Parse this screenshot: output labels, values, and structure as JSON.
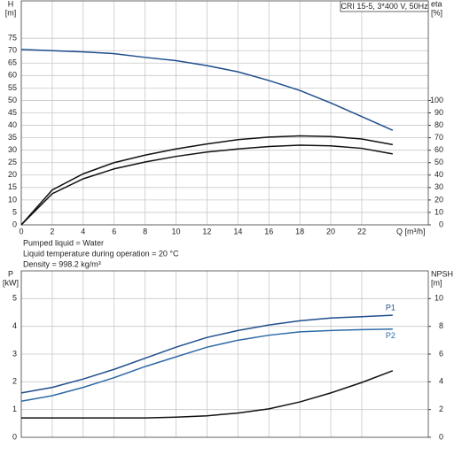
{
  "chart_data": [
    {
      "type": "line",
      "title": "CRI 15-5, 3*400 V, 50Hz",
      "ylabel": [
        "H",
        "[m]"
      ],
      "y2label": [
        "eta",
        "[%]"
      ],
      "xlabel": "Q [m³/h]",
      "x": [
        0,
        2,
        4,
        6,
        8,
        10,
        12,
        14,
        16,
        18,
        20,
        22,
        24
      ],
      "xlim": [
        0,
        26.3
      ],
      "xticks": [
        0,
        2,
        4,
        6,
        8,
        10,
        12,
        14,
        16,
        18,
        20,
        22
      ],
      "ylim": [
        0,
        90
      ],
      "yticks": [
        0,
        5,
        10,
        15,
        20,
        25,
        30,
        35,
        40,
        45,
        50,
        55,
        60,
        65,
        70,
        75
      ],
      "y2lim": [
        0,
        180
      ],
      "y2ticks": [
        0,
        10,
        20,
        30,
        40,
        50,
        60,
        70,
        80,
        90,
        100
      ],
      "grid": true,
      "series": [
        {
          "color": "#1f4e8c",
          "values": [
            70.5,
            70,
            69.5,
            68.8,
            67.3,
            66,
            64,
            61.5,
            58,
            54,
            49,
            43.5,
            38
          ]
        },
        {
          "color": "#111111",
          "axis": "y2",
          "values": [
            0,
            28,
            41,
            50,
            56,
            61,
            65,
            68.5,
            70.5,
            71.5,
            71,
            69,
            64.5
          ]
        },
        {
          "color": "#111111",
          "axis": "y2",
          "values": [
            0,
            25,
            37,
            45,
            50.5,
            55,
            58.5,
            61,
            63,
            64,
            63.5,
            61.5,
            57
          ]
        }
      ]
    },
    {
      "type": "line",
      "ylabel": [
        "P",
        "[kW]"
      ],
      "y2label": [
        "NPSH",
        "[m]"
      ],
      "x": [
        0,
        2,
        4,
        6,
        8,
        10,
        12,
        14,
        16,
        18,
        20,
        22,
        24
      ],
      "xlim": [
        0,
        26.3
      ],
      "ylim": [
        0,
        6
      ],
      "yticks": [
        0,
        1,
        2,
        3,
        4,
        5
      ],
      "y2lim": [
        0,
        12
      ],
      "y2ticks": [
        0,
        2,
        4,
        6,
        8,
        10
      ],
      "grid": true,
      "series": [
        {
          "name": "P1",
          "color": "#1f4e8c",
          "values": [
            1.6,
            1.8,
            2.1,
            2.45,
            2.85,
            3.25,
            3.6,
            3.85,
            4.05,
            4.2,
            4.3,
            4.35,
            4.4
          ]
        },
        {
          "name": "P2",
          "color": "#2e6aa6",
          "values": [
            1.3,
            1.5,
            1.8,
            2.15,
            2.55,
            2.9,
            3.25,
            3.5,
            3.68,
            3.8,
            3.85,
            3.88,
            3.9
          ]
        },
        {
          "color": "#111111",
          "axis": "y2",
          "values": [
            1.4,
            1.4,
            1.4,
            1.4,
            1.4,
            1.45,
            1.55,
            1.75,
            2.05,
            2.55,
            3.2,
            3.95,
            4.8
          ]
        }
      ]
    }
  ],
  "info": [
    "Pumped liquid = Water",
    "Liquid temperature during operation = 20 °C",
    "Density = 998.2 kg/m³"
  ]
}
